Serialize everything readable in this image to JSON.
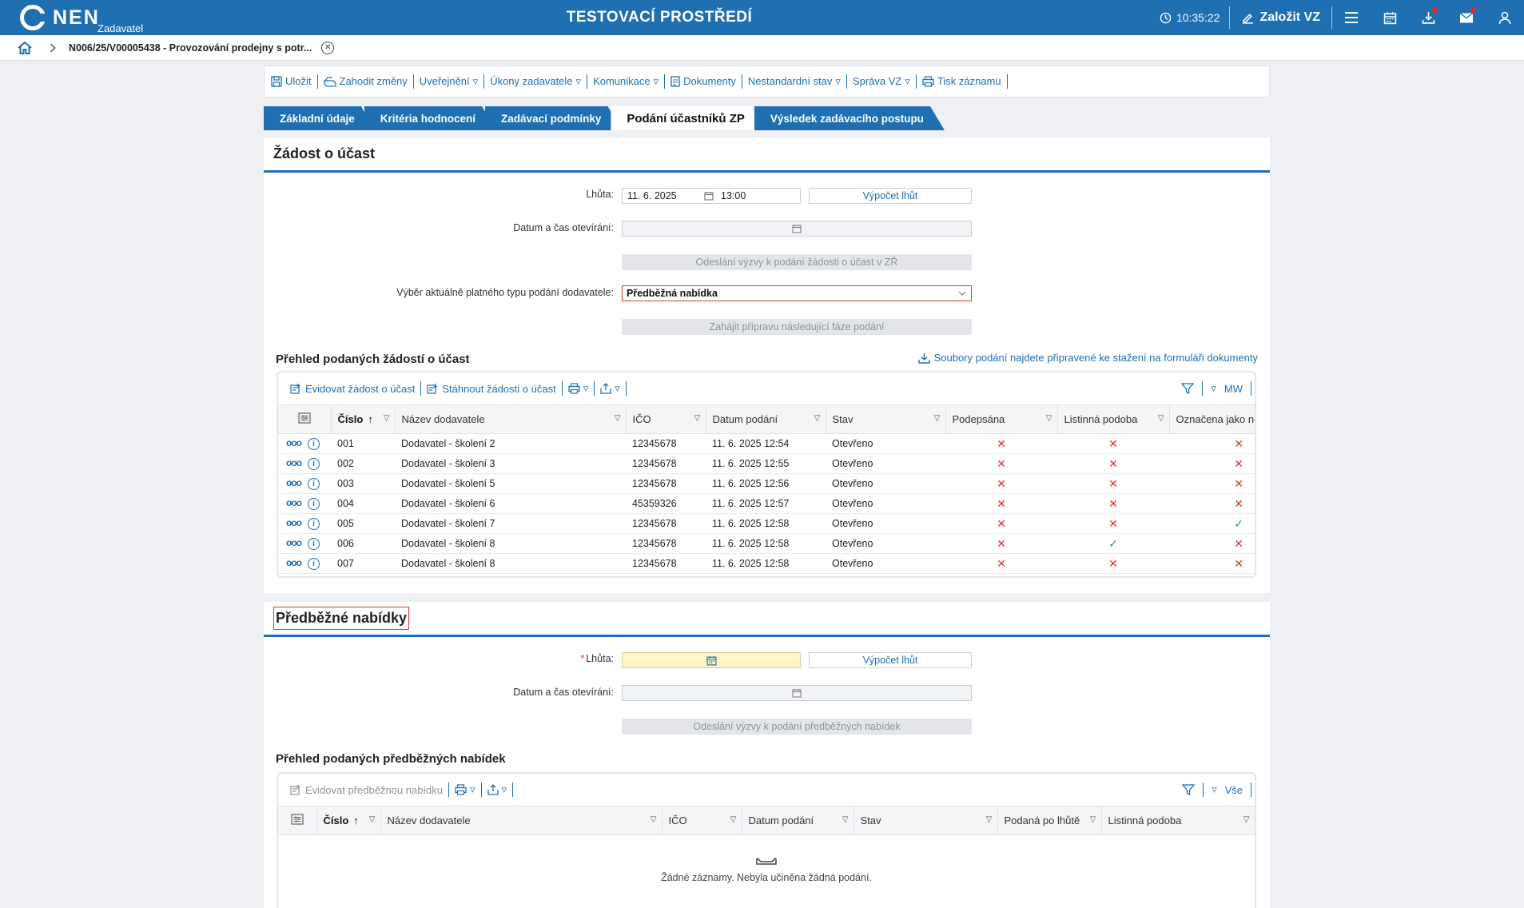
{
  "header": {
    "logo_text": "NEN",
    "logo_sub": "Zadavatel",
    "title": "TESTOVACÍ PROSTŘEDÍ",
    "clock": "10:35:22",
    "create_label": "Založit VZ",
    "icons": [
      "menu-icon",
      "calendar-icon",
      "download-icon",
      "mail-icon",
      "user-icon"
    ]
  },
  "breadcrumb": {
    "text": "N006/25/V00005438 - Provozování prodejny s potr..."
  },
  "toolbar": {
    "items": [
      {
        "label": "Uložit",
        "caret": false
      },
      {
        "label": "Zahodit změny",
        "caret": false
      },
      {
        "label": "Uveřejnění",
        "caret": true
      },
      {
        "label": "Úkony zadavatele",
        "caret": true
      },
      {
        "label": "Komunikace",
        "caret": true
      },
      {
        "label": "Dokumenty",
        "caret": false
      },
      {
        "label": "Nestandardní stav",
        "caret": true
      },
      {
        "label": "Správa VZ",
        "caret": true
      },
      {
        "label": "Tisk záznamu",
        "caret": false
      }
    ]
  },
  "tabs": [
    {
      "label": "Základní údaje",
      "active": false
    },
    {
      "label": "Kritéria hodnocení",
      "active": false
    },
    {
      "label": "Zadávací podmínky",
      "active": false
    },
    {
      "label": "Podání účastníků ZP",
      "active": true
    },
    {
      "label": "Výsledek zadávacího postupu",
      "active": false
    }
  ],
  "section1": {
    "title": "Žádost o účast",
    "deadline_label": "Lhůta:",
    "deadline_date": "11. 6. 2025",
    "deadline_time": "13:00",
    "calc_button": "Výpočet lhůt",
    "opening_label": "Datum a čas otevírání:",
    "opening_value": "",
    "send_button": "Odeslání výzvy k podání žádosti o účast v ZŘ",
    "type_label": "Výběr aktuálně platného typu podání dodavatele:",
    "type_value": "Předběžná nabídka",
    "next_phase_button": "Zahájit přípravu následující fáze podání",
    "overview_title": "Přehled podaných žádostí o účast",
    "download_link": "Soubory podání najdete připravené ke stažení na formuláři dokumenty",
    "grid_toolbar": {
      "register": "Evidovat žádost o účast",
      "download": "Stáhnout žádosti o účast",
      "right_label": "MW"
    },
    "columns": [
      "Číslo",
      "Název dodavatele",
      "IČO",
      "Datum podání",
      "Stav",
      "Podepsána",
      "Listinná podoba",
      "Označena jako ne"
    ],
    "rows": [
      {
        "num": "001",
        "name": "Dodavatel - školení 2",
        "ico": "12345678",
        "date": "11. 6. 2025 12:54",
        "state": "Otevřeno",
        "signed": false,
        "paper": false,
        "marked": false
      },
      {
        "num": "002",
        "name": "Dodavatel - školení 3",
        "ico": "12345678",
        "date": "11. 6. 2025 12:55",
        "state": "Otevřeno",
        "signed": false,
        "paper": false,
        "marked": false
      },
      {
        "num": "003",
        "name": "Dodavatel - školení 5",
        "ico": "12345678",
        "date": "11. 6. 2025 12:56",
        "state": "Otevřeno",
        "signed": false,
        "paper": false,
        "marked": false
      },
      {
        "num": "004",
        "name": "Dodavatel - školení 6",
        "ico": "45359326",
        "date": "11. 6. 2025 12:57",
        "state": "Otevřeno",
        "signed": false,
        "paper": false,
        "marked": false
      },
      {
        "num": "005",
        "name": "Dodavatel - školení 7",
        "ico": "12345678",
        "date": "11. 6. 2025 12:58",
        "state": "Otevřeno",
        "signed": false,
        "paper": false,
        "marked": true
      },
      {
        "num": "006",
        "name": "Dodavatel - školení 8",
        "ico": "12345678",
        "date": "11. 6. 2025 12:58",
        "state": "Otevřeno",
        "signed": false,
        "paper": true,
        "marked": false
      },
      {
        "num": "007",
        "name": "Dodavatel - školení 8",
        "ico": "12345678",
        "date": "11. 6. 2025 12:58",
        "state": "Otevřeno",
        "signed": false,
        "paper": false,
        "marked": false
      }
    ]
  },
  "section2": {
    "title": "Předběžné nabídky",
    "deadline_label": "Lhůta:",
    "deadline_value": "",
    "calc_button": "Výpočet lhůt",
    "opening_label": "Datum a čas otevírání:",
    "send_button": "Odeslání výzvy k podání předběžných nabídek",
    "overview_title": "Přehled podaných předběžných nabídek",
    "grid_toolbar": {
      "register": "Evidovat předběžnou nabídku",
      "right_label": "Vše"
    },
    "columns": [
      "Číslo",
      "Název dodavatele",
      "IČO",
      "Datum podání",
      "Stav",
      "Podaná po lhůtě",
      "Listinná podoba"
    ],
    "empty_text": "Žádné záznamy. Nebyla učiněna žádná podání."
  },
  "colors": {
    "primary": "#1f6fb3",
    "error": "#d9383a",
    "ok": "#2f9e3c"
  }
}
